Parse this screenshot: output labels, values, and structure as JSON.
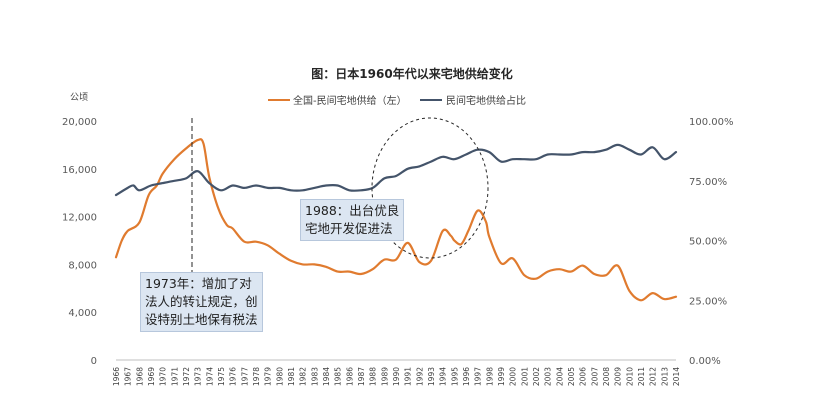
{
  "chart_data": {
    "type": "line",
    "title": "图：日本1960年代以来宅地供给变化",
    "ylabel_left": "公顷",
    "ylim_left": [
      0,
      20000
    ],
    "yticks_left": [
      "0",
      "4,000",
      "8,000",
      "12,000",
      "16,000",
      "20,000"
    ],
    "ylim_right": [
      0,
      1
    ],
    "yticks_right": [
      "0.00%",
      "25.00%",
      "50.00%",
      "75.00%",
      "100.00%"
    ],
    "x_start": 1966,
    "x_end": 2014,
    "categories": [
      "1966",
      "1967",
      "1968",
      "1969",
      "1970",
      "1971",
      "1972",
      "1973",
      "1974",
      "1975",
      "1976",
      "1977",
      "1978",
      "1979",
      "1980",
      "1981",
      "1982",
      "1983",
      "1984",
      "1985",
      "1986",
      "1987",
      "1988",
      "1989",
      "1990",
      "1991",
      "1992",
      "1993",
      "1994",
      "1995",
      "1996",
      "1997",
      "1998",
      "1999",
      "2000",
      "2001",
      "2002",
      "2003",
      "2004",
      "2005",
      "2006",
      "2007",
      "2008",
      "2009",
      "2010",
      "2011",
      "2012",
      "2013",
      "2014"
    ],
    "series": [
      {
        "name": "全国-民间宅地供给（左）",
        "axis": "left",
        "color": "#e07b2f",
        "x": [
          1966,
          1966.5,
          1967,
          1968,
          1968.8,
          1969.5,
          1970,
          1971,
          1972,
          1973,
          1973.5,
          1974,
          1974.8,
          1975.5,
          1976,
          1977,
          1978,
          1979,
          1980,
          1981,
          1982,
          1983,
          1984,
          1985,
          1986,
          1987,
          1988,
          1989,
          1990,
          1991,
          1992,
          1993,
          1994,
          1994.7,
          1995,
          1995.6,
          1996.2,
          1997,
          1997.7,
          1998,
          1999,
          2000,
          2001,
          2002,
          2003,
          2004,
          2005,
          2006,
          2007,
          2008,
          2009,
          2010,
          2011,
          2012,
          2013,
          2014
        ],
        "values": [
          8600,
          10000,
          10800,
          11500,
          13800,
          14600,
          15600,
          16800,
          17700,
          18400,
          18100,
          15300,
          12600,
          11300,
          11000,
          9900,
          9900,
          9600,
          8900,
          8300,
          8000,
          8000,
          7800,
          7400,
          7400,
          7200,
          7600,
          8400,
          8400,
          9800,
          8200,
          8300,
          10800,
          10400,
          10000,
          9700,
          10800,
          12500,
          11600,
          10300,
          8100,
          8500,
          7100,
          6800,
          7400,
          7600,
          7400,
          7900,
          7200,
          7100,
          7900,
          5800,
          5000,
          5600,
          5100,
          5300
        ]
      },
      {
        "name": "民间宅地供给占比",
        "axis": "right",
        "color": "#44546a",
        "x": [
          1966,
          1967,
          1967.5,
          1968,
          1969,
          1970,
          1971,
          1972,
          1973,
          1974,
          1975,
          1976,
          1977,
          1978,
          1979,
          1980,
          1981,
          1982,
          1983,
          1984,
          1985,
          1986,
          1987,
          1988,
          1989,
          1990,
          1991,
          1992,
          1993,
          1994,
          1995,
          1996,
          1997,
          1998,
          1999,
          2000,
          2001,
          2002,
          2003,
          2004,
          2005,
          2006,
          2007,
          2008,
          2009,
          2010,
          2011,
          2012,
          2013,
          2014
        ],
        "values": [
          0.69,
          0.72,
          0.73,
          0.71,
          0.73,
          0.74,
          0.75,
          0.76,
          0.79,
          0.74,
          0.71,
          0.73,
          0.72,
          0.73,
          0.72,
          0.72,
          0.71,
          0.71,
          0.72,
          0.73,
          0.73,
          0.71,
          0.71,
          0.72,
          0.76,
          0.77,
          0.8,
          0.81,
          0.83,
          0.85,
          0.84,
          0.86,
          0.88,
          0.87,
          0.83,
          0.84,
          0.84,
          0.84,
          0.86,
          0.86,
          0.86,
          0.87,
          0.87,
          0.88,
          0.9,
          0.88,
          0.86,
          0.89,
          0.84,
          0.87
        ]
      }
    ],
    "annotations": [
      {
        "label": "1973年：增加了对法人的转让规定，创设特别土地保有税法",
        "lines": [
          "1973年：增加了对",
          "法人的转让规定，创",
          "设特别土地保有税法"
        ],
        "year": 1973
      },
      {
        "label": "1988：出台优良宅地开发促进法",
        "lines": [
          "1988：出台优良",
          "宅地开发促进法"
        ],
        "year": 1988
      }
    ]
  }
}
